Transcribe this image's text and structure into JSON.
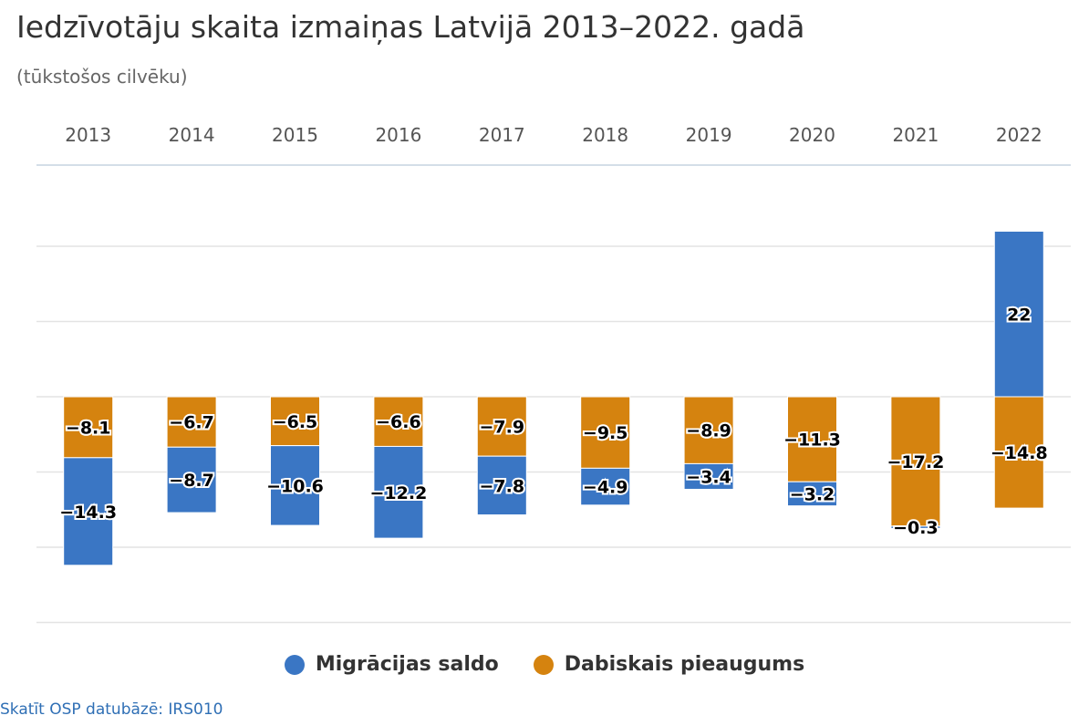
{
  "title": "Iedzīvotāju skaita izmaiņas Latvijā 2013–2022. gadā",
  "subtitle": "(tūkstošos cilvēku)",
  "source_link": "Skatīt OSP datubāzē: IRS010",
  "chart_data": {
    "type": "bar",
    "stacked": true,
    "categories": [
      "2013",
      "2014",
      "2015",
      "2016",
      "2017",
      "2018",
      "2019",
      "2020",
      "2021",
      "2022"
    ],
    "series": [
      {
        "name": "Migrācijas saldo",
        "color": "#3a76c4",
        "values": [
          -14.3,
          -8.7,
          -10.6,
          -12.2,
          -7.8,
          -4.9,
          -3.4,
          -3.2,
          -0.3,
          22
        ],
        "labels": [
          "-14.3",
          "-8.7",
          "-10.6",
          "-12.2",
          "-7.8",
          "-4.9",
          "-3.4",
          "-3.2",
          "-0.3",
          "22"
        ]
      },
      {
        "name": "Dabiskais pieaugums",
        "color": "#d5830f",
        "values": [
          -8.1,
          -6.7,
          -6.5,
          -6.6,
          -7.9,
          -9.5,
          -8.9,
          -11.3,
          -17.2,
          -14.8
        ],
        "labels": [
          "-8.1",
          "-6.7",
          "-6.5",
          "-6.6",
          "-7.9",
          "-9.5",
          "-8.9",
          "-11.3",
          "-17.2",
          "-14.8"
        ]
      }
    ],
    "ylim": [
      -30,
      30
    ],
    "gridlines": [
      20,
      10,
      0,
      -10,
      -20,
      -30
    ],
    "x_axis_position": "top",
    "grid": true,
    "legend_position": "bottom"
  }
}
